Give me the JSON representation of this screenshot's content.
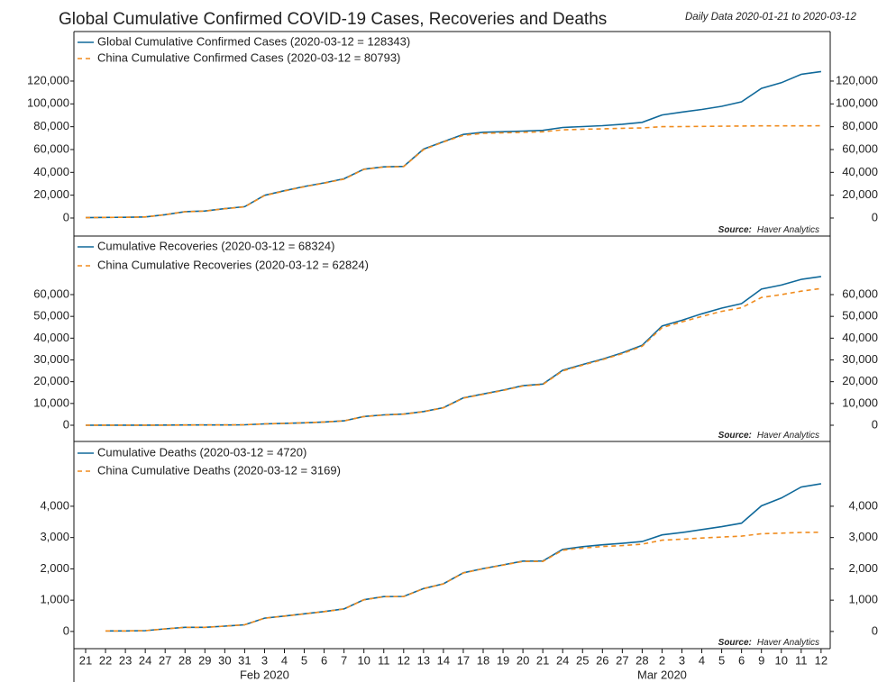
{
  "title": "Global Cumulative Confirmed COVID-19 Cases, Recoveries and Deaths",
  "subtitle": "Daily Data 2020-01-21 to 2020-03-12",
  "x_axis": {
    "categories": [
      "21",
      "22",
      "23",
      "24",
      "27",
      "28",
      "29",
      "30",
      "31",
      "3",
      "4",
      "5",
      "6",
      "7",
      "10",
      "11",
      "12",
      "13",
      "14",
      "17",
      "18",
      "19",
      "20",
      "21",
      "24",
      "25",
      "26",
      "27",
      "28",
      "2",
      "3",
      "4",
      "5",
      "6",
      "9",
      "10",
      "11",
      "12"
    ],
    "month_labels": [
      {
        "label": "Feb 2020",
        "index": 9
      },
      {
        "label": "Mar 2020",
        "index": 29
      }
    ]
  },
  "chart_data": [
    {
      "type": "line",
      "ylim": [
        -15800,
        163400
      ],
      "yticks": [
        0,
        {
          "value": 20000,
          "label": "20,000"
        },
        {
          "value": 40000,
          "label": "40,000"
        },
        {
          "value": 60000,
          "label": "60,000"
        },
        {
          "value": 80000,
          "label": "80,000"
        },
        {
          "value": 100000,
          "label": "100,000"
        },
        {
          "value": 120000,
          "label": "120,000"
        }
      ],
      "source_label": "Source:",
      "source": "Haver Analytics",
      "series": [
        {
          "name": "Global Cumulative Confirmed Cases (2020-03-12 = 128343)",
          "color": "#10699a",
          "style": "solid",
          "values": [
            282,
            555,
            653,
            941,
            2927,
            5578,
            6166,
            8234,
            9927,
            19881,
            23892,
            27635,
            30794,
            34391,
            42762,
            44802,
            45221,
            60368,
            66885,
            73258,
            75136,
            75639,
            76197,
            76819,
            79356,
            80088,
            80886,
            82132,
            83814,
            90306,
            92840,
            95120,
            97886,
            101801,
            113582,
            118582,
            125865,
            128343
          ]
        },
        {
          "name": "China Cumulative Confirmed Cases (2020-03-12 = 80793)",
          "color": "#f08c1e",
          "style": "dashed",
          "values": [
            278,
            547,
            639,
            916,
            2886,
            5509,
            6087,
            8141,
            9802,
            19665,
            23680,
            27409,
            30553,
            34075,
            42638,
            44653,
            45027,
            59883,
            66578,
            72436,
            74185,
            74576,
            75077,
            75550,
            77241,
            77754,
            78166,
            78600,
            78961,
            80026,
            80151,
            80271,
            80422,
            80573,
            80735,
            80757,
            80778,
            80793
          ]
        }
      ]
    },
    {
      "type": "line",
      "ylim": [
        -7450,
        86900
      ],
      "yticks": [
        0,
        {
          "value": 10000,
          "label": "10,000"
        },
        {
          "value": 20000,
          "label": "20,000"
        },
        {
          "value": 30000,
          "label": "30,000"
        },
        {
          "value": 40000,
          "label": "40,000"
        },
        {
          "value": 50000,
          "label": "50,000"
        },
        {
          "value": 60000,
          "label": "60,000"
        }
      ],
      "source_label": "Source:",
      "source": "Haver Analytics",
      "series": [
        {
          "name": "Cumulative Recoveries (2020-03-12 = 68324)",
          "color": "#10699a",
          "style": "solid",
          "values": [
            0,
            28,
            30,
            36,
            61,
            107,
            126,
            143,
            222,
            623,
            852,
            1124,
            1487,
            2011,
            3996,
            4740,
            5150,
            6295,
            8058,
            12583,
            14352,
            16121,
            18177,
            18890,
            25227,
            27905,
            30384,
            33277,
            36711,
            45602,
            48228,
            51170,
            53796,
            55866,
            62512,
            64404,
            67003,
            68324
          ]
        },
        {
          "name": "China Cumulative Recoveries (2020-03-12 = 62824)",
          "color": "#f08c1e",
          "style": "dashed",
          "values": [
            0,
            28,
            30,
            36,
            58,
            101,
            120,
            135,
            214,
            615,
            843,
            1112,
            1471,
            1985,
            3956,
            4684,
            5082,
            6217,
            7973,
            12455,
            14199,
            15952,
            17980,
            18686,
            24972,
            27617,
            30083,
            32898,
            36291,
            44854,
            47450,
            50001,
            52292,
            53944,
            58684,
            59982,
            61567,
            62824
          ]
        }
      ]
    },
    {
      "type": "line",
      "ylim": [
        -550,
        6070
      ],
      "yticks": [
        0,
        {
          "value": 1000,
          "label": "1,000"
        },
        {
          "value": 2000,
          "label": "2,000"
        },
        {
          "value": 3000,
          "label": "3,000"
        },
        {
          "value": 4000,
          "label": "4,000"
        }
      ],
      "source_label": "Source:",
      "source": "Haver Analytics",
      "series": [
        {
          "name": "Cumulative Deaths (2020-03-12 = 4720)",
          "color": "#10699a",
          "style": "solid",
          "values": [
            null,
            17,
            18,
            26,
            82,
            131,
            133,
            171,
            213,
            427,
            493,
            565,
            637,
            723,
            1013,
            1113,
            1118,
            1371,
            1523,
            1873,
            2009,
            2126,
            2247,
            2251,
            2623,
            2708,
            2770,
            2814,
            2872,
            3085,
            3160,
            3254,
            3348,
            3460,
            4012,
            4262,
            4615,
            4720
          ]
        },
        {
          "name": "China Cumulative Deaths (2020-03-12 = 3169)",
          "color": "#f08c1e",
          "style": "dashed",
          "values": [
            null,
            17,
            18,
            26,
            81,
            131,
            133,
            170,
            213,
            425,
            490,
            562,
            632,
            717,
            1011,
            1110,
            1115,
            1367,
            1520,
            1868,
            2004,
            2118,
            2236,
            2236,
            2595,
            2663,
            2715,
            2744,
            2788,
            2915,
            2946,
            2984,
            3015,
            3045,
            3123,
            3140,
            3162,
            3169
          ]
        }
      ]
    }
  ]
}
